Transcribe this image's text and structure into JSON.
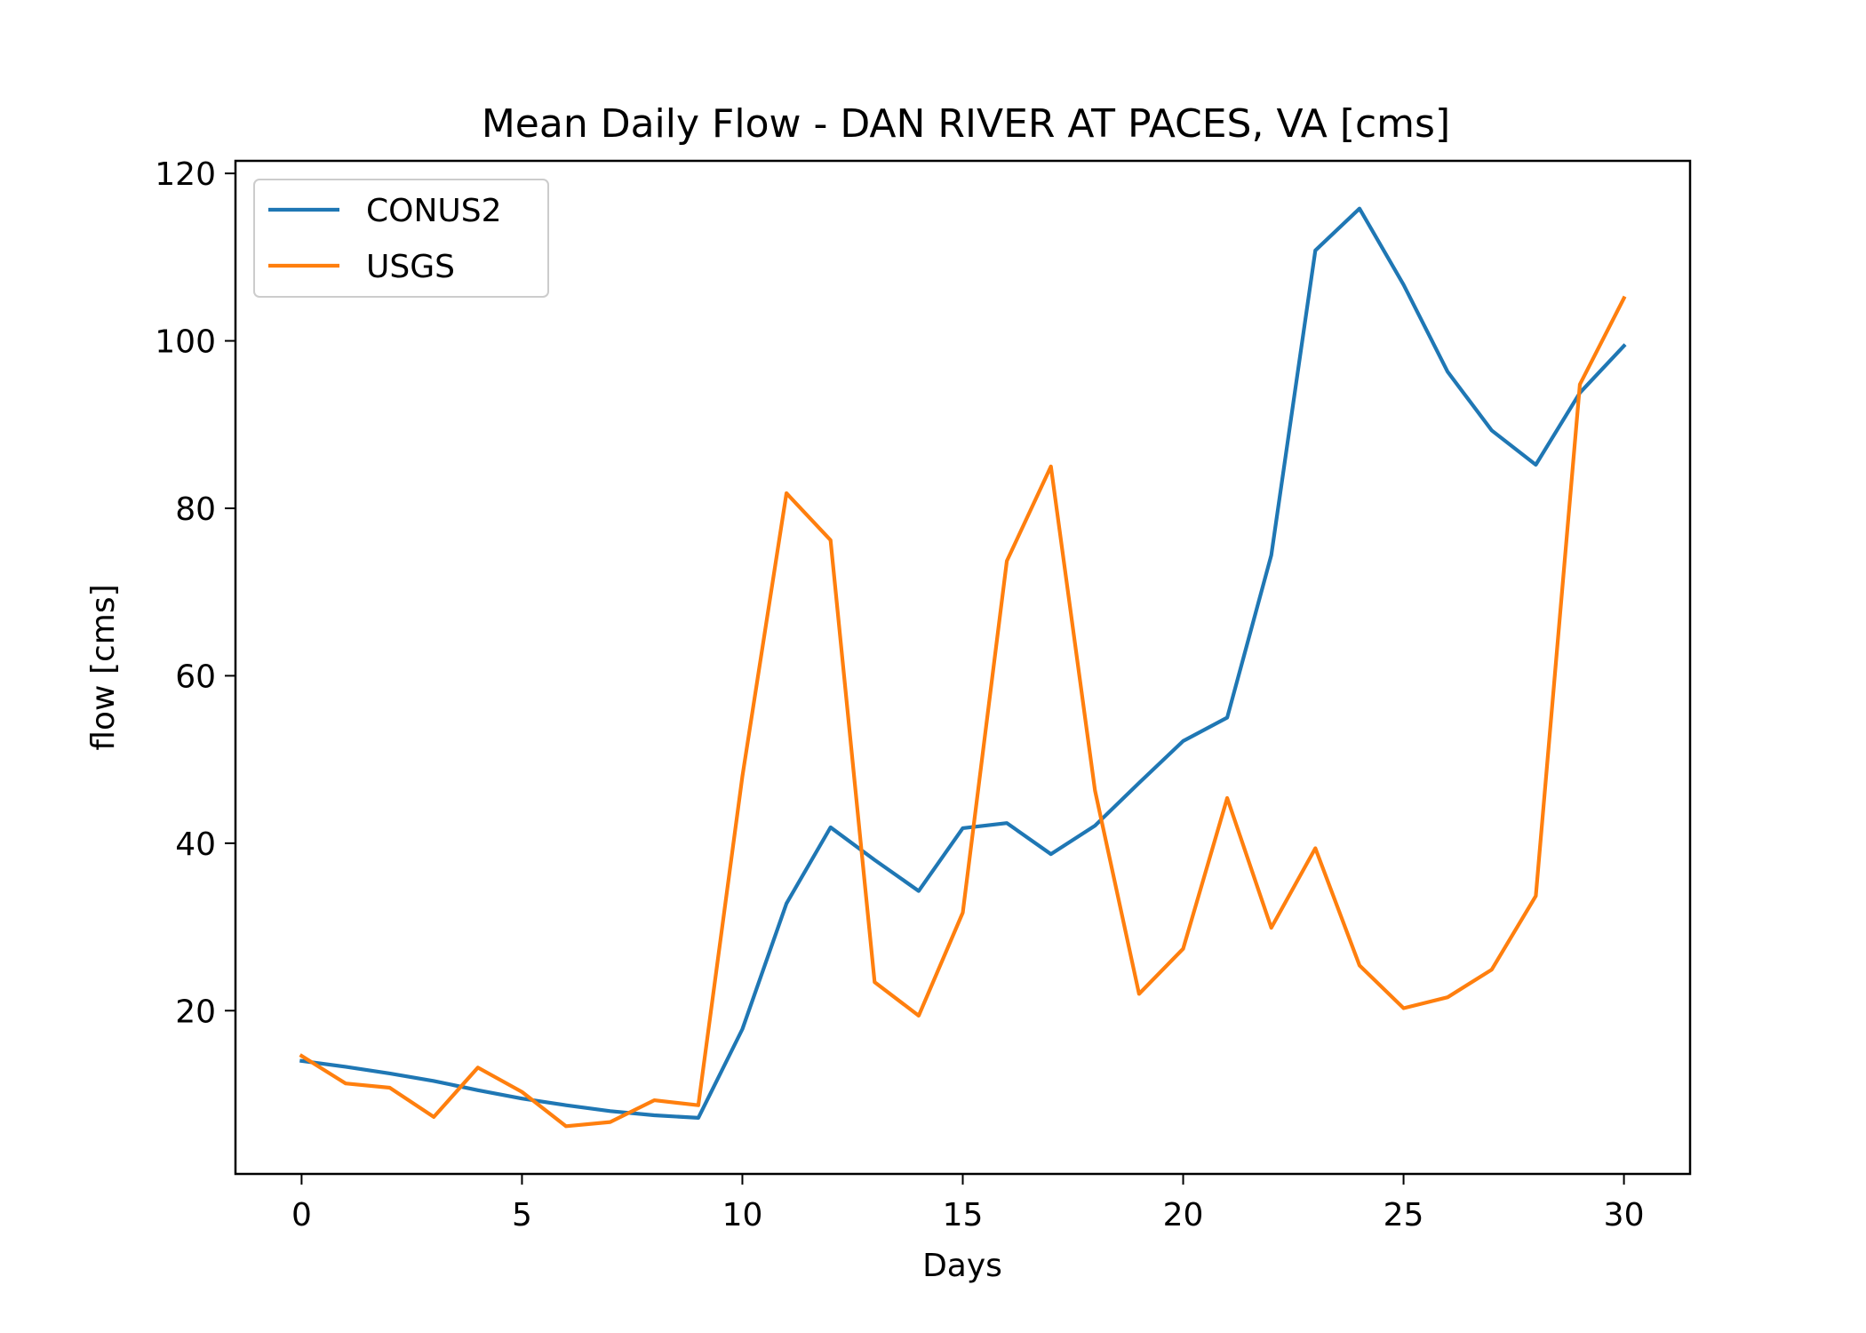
{
  "chart_data": {
    "type": "line",
    "title": "Mean Daily Flow - DAN RIVER AT PACES, VA [cms]",
    "xlabel": "Days",
    "ylabel": "flow [cms]",
    "xlim": [
      -1.5,
      31.5
    ],
    "ylim": [
      0.5,
      121.5
    ],
    "xticks": [
      0,
      5,
      10,
      15,
      20,
      25,
      30
    ],
    "yticks": [
      20,
      40,
      60,
      80,
      100,
      120
    ],
    "grid": false,
    "legend_position": "top-left",
    "x": [
      0,
      1,
      2,
      3,
      4,
      5,
      6,
      7,
      8,
      9,
      10,
      11,
      12,
      13,
      14,
      15,
      16,
      17,
      18,
      19,
      20,
      21,
      22,
      23,
      24,
      25,
      26,
      27,
      28,
      29,
      30
    ],
    "series": [
      {
        "name": "CONUS2",
        "color": "#1f77b4",
        "values": [
          14.0,
          13.3,
          12.5,
          11.6,
          10.5,
          9.5,
          8.7,
          8.0,
          7.5,
          7.2,
          17.8,
          32.8,
          41.9,
          38.0,
          34.3,
          41.8,
          42.4,
          38.7,
          42.1,
          47.2,
          52.2,
          55.0,
          74.4,
          110.8,
          115.8,
          106.7,
          96.3,
          89.3,
          85.2,
          93.8,
          99.4
        ]
      },
      {
        "name": "USGS",
        "color": "#ff7f0e",
        "values": [
          14.6,
          11.3,
          10.8,
          7.3,
          13.2,
          10.3,
          6.2,
          6.7,
          9.3,
          8.7,
          48.0,
          81.8,
          76.2,
          23.4,
          19.4,
          31.7,
          73.7,
          85.0,
          46.3,
          22.0,
          27.4,
          45.4,
          29.9,
          39.4,
          25.4,
          20.3,
          21.6,
          24.9,
          33.7,
          94.8,
          105.1
        ]
      }
    ]
  }
}
